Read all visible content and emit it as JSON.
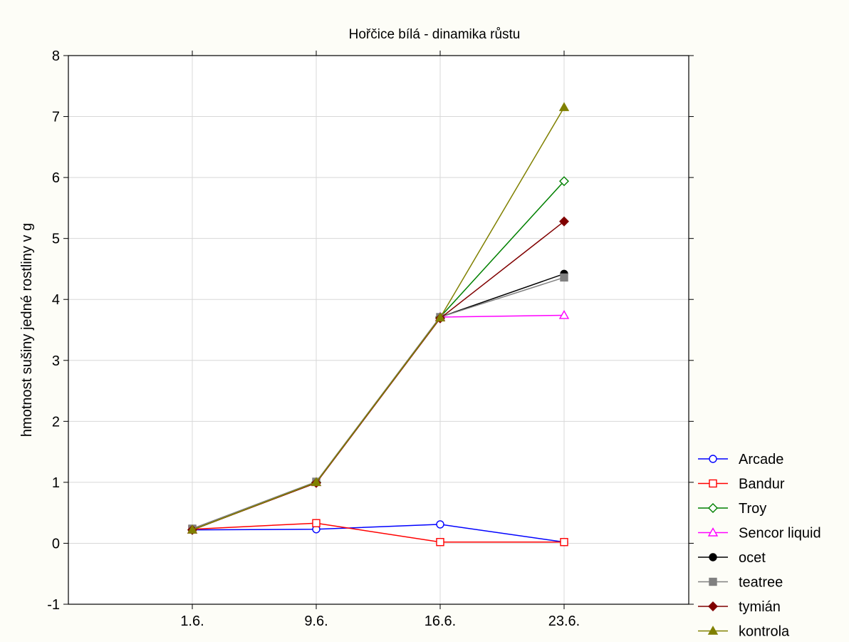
{
  "chart_data": {
    "type": "line",
    "title": "Hořčice bílá - dinamika růstu",
    "xlabel": "",
    "ylabel": "hmotnost sušiny jedné rostliny v g",
    "categories": [
      "1.6.",
      "9.6.",
      "16.6.",
      "23.6."
    ],
    "ylim": [
      -1,
      8
    ],
    "yticks": [
      "-1",
      "0",
      "1",
      "2",
      "3",
      "4",
      "5",
      "6",
      "7",
      "8"
    ],
    "grid": true,
    "legend_position": "right",
    "series": [
      {
        "name": "Arcade",
        "color": "#0000ff",
        "marker": "circle-open",
        "values": [
          0.22,
          0.23,
          0.31,
          0.02
        ]
      },
      {
        "name": "Bandur",
        "color": "#ff0000",
        "marker": "square-open",
        "values": [
          0.23,
          0.33,
          0.02,
          0.02
        ]
      },
      {
        "name": "Troy",
        "color": "#008000",
        "marker": "diamond-open",
        "values": [
          0.22,
          1.0,
          3.71,
          5.94
        ]
      },
      {
        "name": "Sencor liquid",
        "color": "#ff00ff",
        "marker": "triangle-open",
        "values": [
          0.22,
          1.0,
          3.71,
          3.74
        ]
      },
      {
        "name": "ocet",
        "color": "#000000",
        "marker": "circle-filled",
        "values": [
          0.22,
          1.0,
          3.71,
          4.42
        ]
      },
      {
        "name": "teatree",
        "color": "#808080",
        "marker": "square-filled",
        "values": [
          0.24,
          1.01,
          3.71,
          4.36
        ]
      },
      {
        "name": "tymián",
        "color": "#800000",
        "marker": "diamond-filled",
        "values": [
          0.22,
          0.99,
          3.69,
          5.28
        ]
      },
      {
        "name": "kontrola",
        "color": "#808000",
        "marker": "triangle-filled",
        "values": [
          0.22,
          1.0,
          3.7,
          7.15
        ]
      }
    ]
  }
}
